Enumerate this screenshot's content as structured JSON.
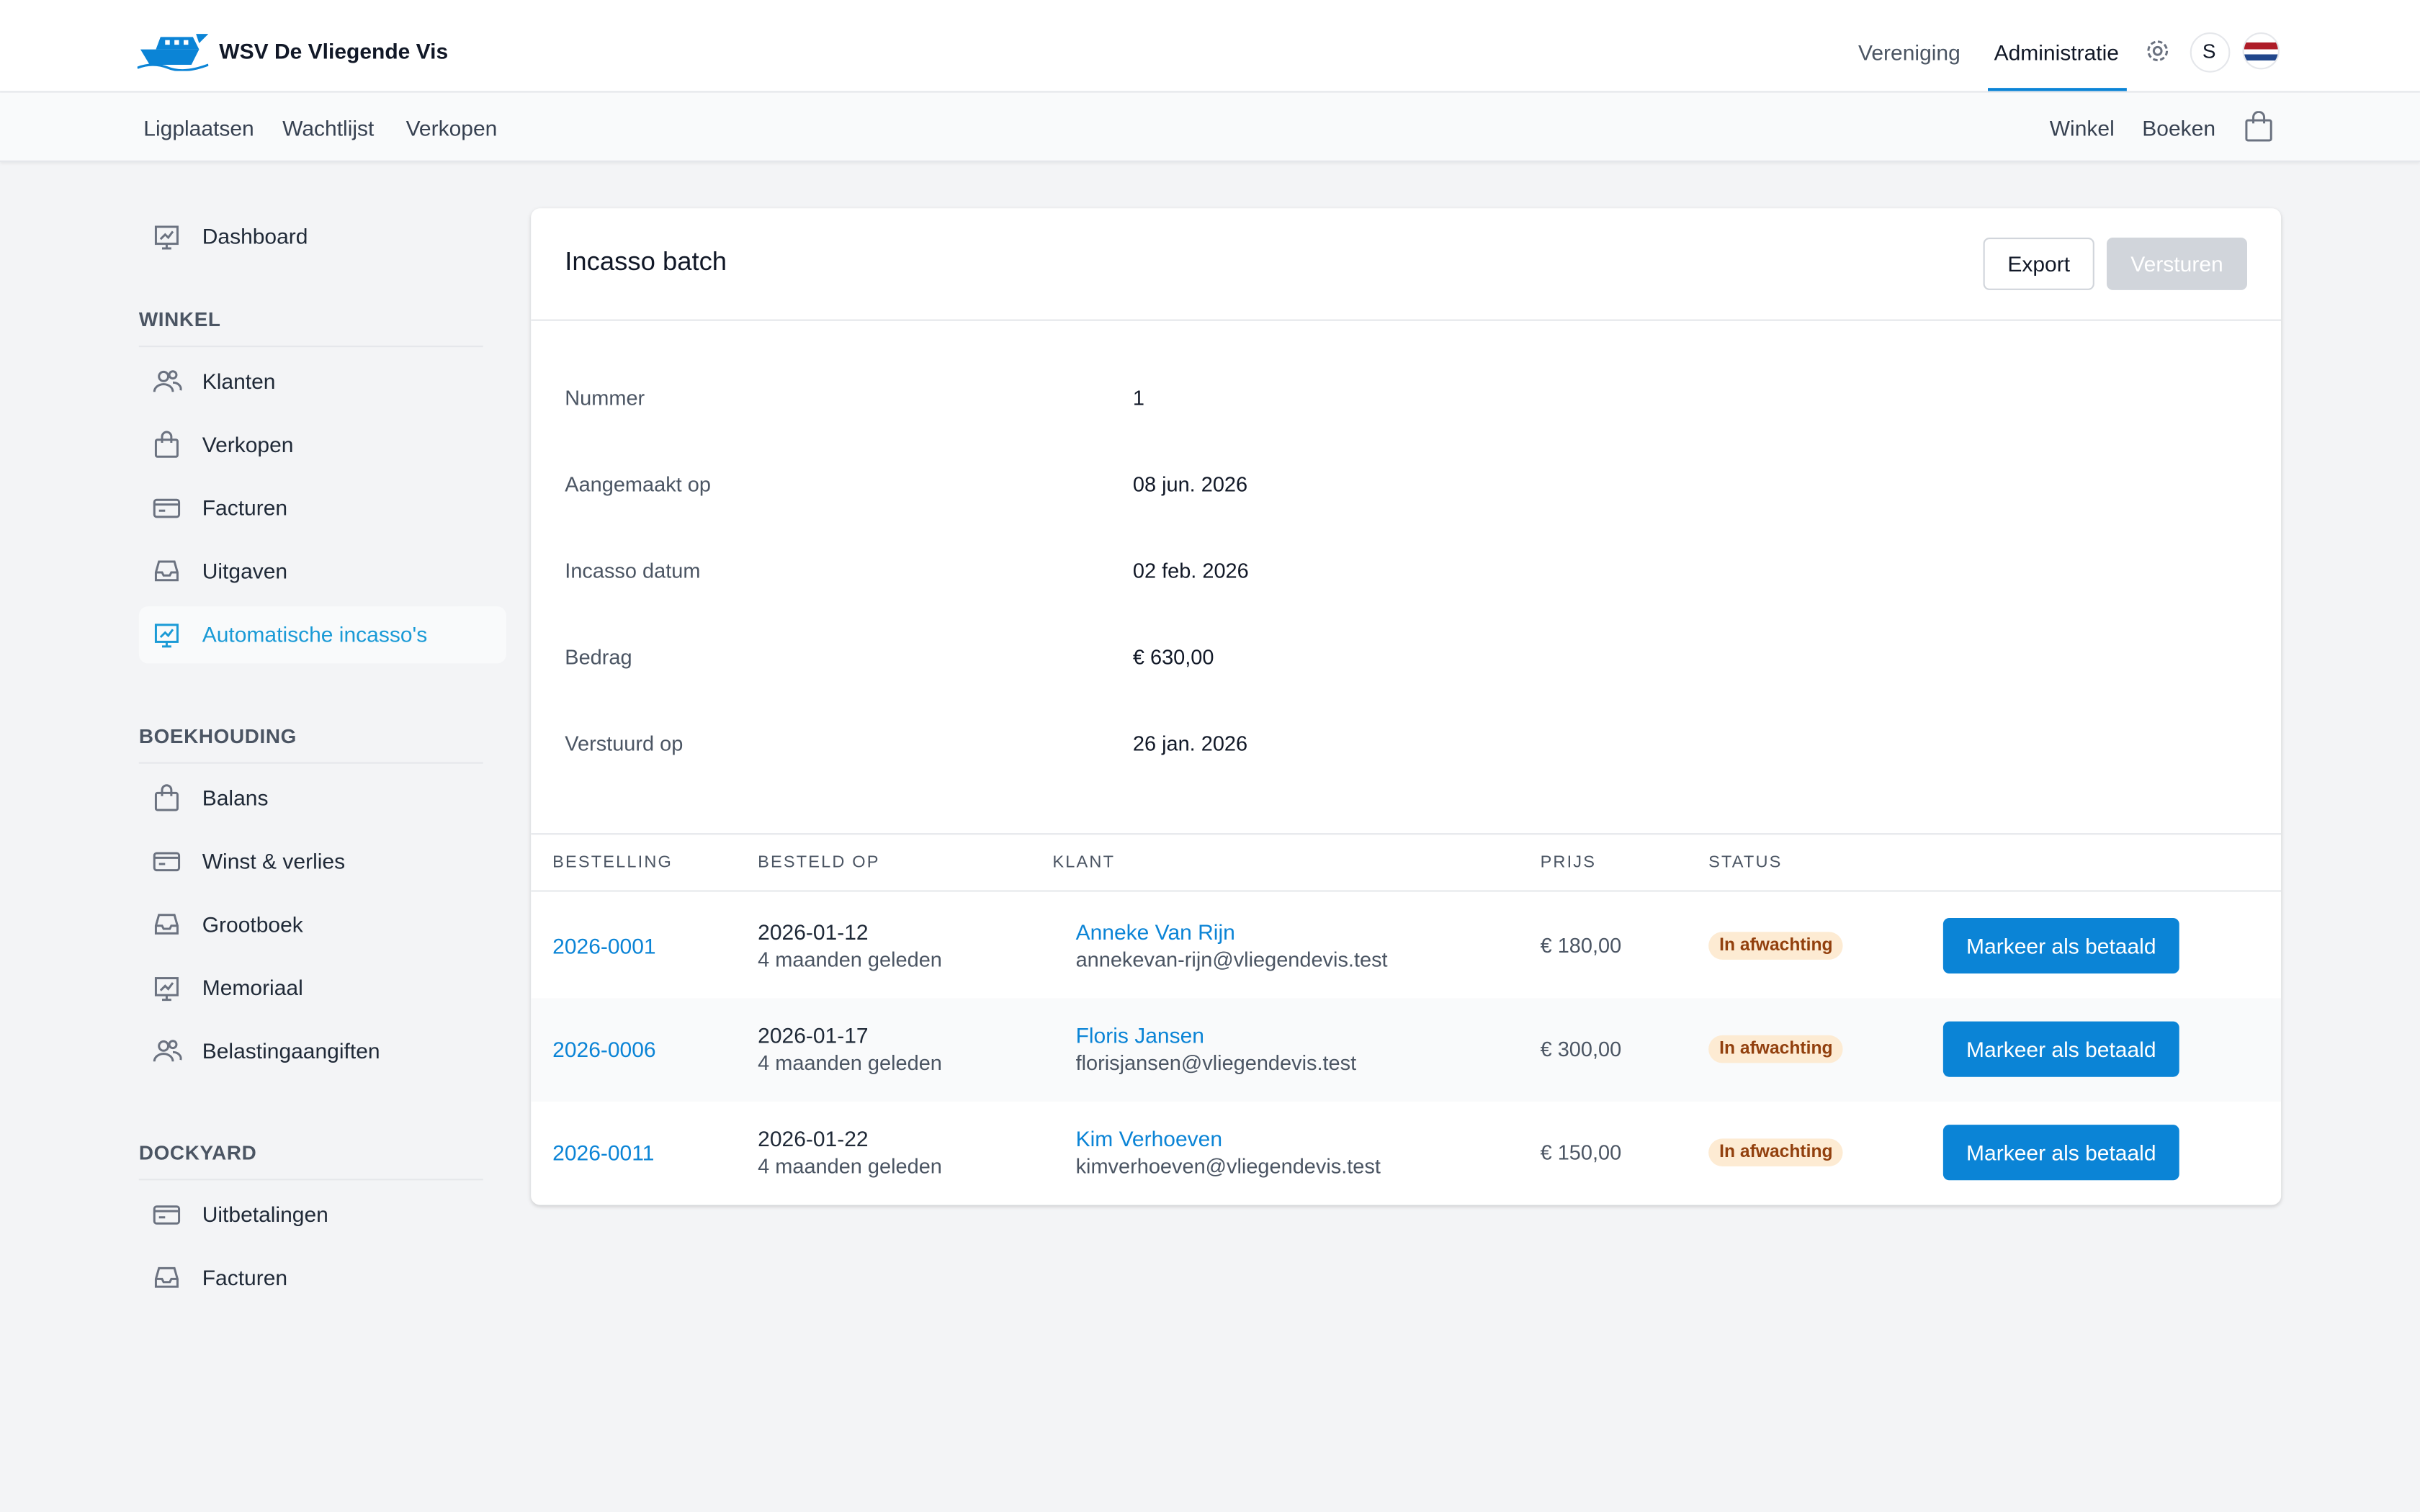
{
  "header": {
    "brand": "WSV De Vliegende Vis",
    "nav": [
      "Vereniging",
      "Administratie"
    ],
    "user_initial": "S"
  },
  "subnav": {
    "left": [
      "Ligplaatsen",
      "Wachtlijst",
      "Verkopen"
    ],
    "right": [
      "Winkel",
      "Boeken"
    ]
  },
  "sidebar": {
    "dashboard": "Dashboard",
    "sections": [
      {
        "title": "WINKEL",
        "items": [
          "Klanten",
          "Verkopen",
          "Facturen",
          "Uitgaven",
          "Automatische incasso's"
        ]
      },
      {
        "title": "BOEKHOUDING",
        "items": [
          "Balans",
          "Winst & verlies",
          "Grootboek",
          "Memoriaal",
          "Belastingaangiften"
        ]
      },
      {
        "title": "DOCKYARD",
        "items": [
          "Uitbetalingen",
          "Facturen"
        ]
      }
    ]
  },
  "panel": {
    "title": "Incasso batch",
    "actions": [
      "Export",
      "Versturen"
    ],
    "details": [
      {
        "label": "Nummer",
        "value": "1"
      },
      {
        "label": "Aangemaakt op",
        "value": "08 jun. 2026"
      },
      {
        "label": "Incasso datum",
        "value": "02 feb. 2026"
      },
      {
        "label": "Bedrag",
        "value": "€ 630,00"
      },
      {
        "label": "Verstuurd op",
        "value": "26 jan. 2026"
      }
    ],
    "table": {
      "columns": [
        "BESTELLING",
        "BESTELD OP",
        "KLANT",
        "PRIJS",
        "STATUS"
      ],
      "rows": [
        {
          "order": "2026-0001",
          "date": "2026-01-12",
          "relative": "4 maanden geleden",
          "customer": "Anneke Van Rijn",
          "email": "annekevan-rijn@vliegendevis.test",
          "price": "€ 180,00",
          "status": "In afwachting",
          "action": "Markeer als betaald"
        },
        {
          "order": "2026-0006",
          "date": "2026-01-17",
          "relative": "4 maanden geleden",
          "customer": "Floris Jansen",
          "email": "florisjansen@vliegendevis.test",
          "price": "€ 300,00",
          "status": "In afwachting",
          "action": "Markeer als betaald"
        },
        {
          "order": "2026-0011",
          "date": "2026-01-22",
          "relative": "4 maanden geleden",
          "customer": "Kim Verhoeven",
          "email": "kimverhoeven@vliegendevis.test",
          "price": "€ 150,00",
          "status": "In afwachting",
          "action": "Markeer als betaald"
        }
      ]
    }
  }
}
